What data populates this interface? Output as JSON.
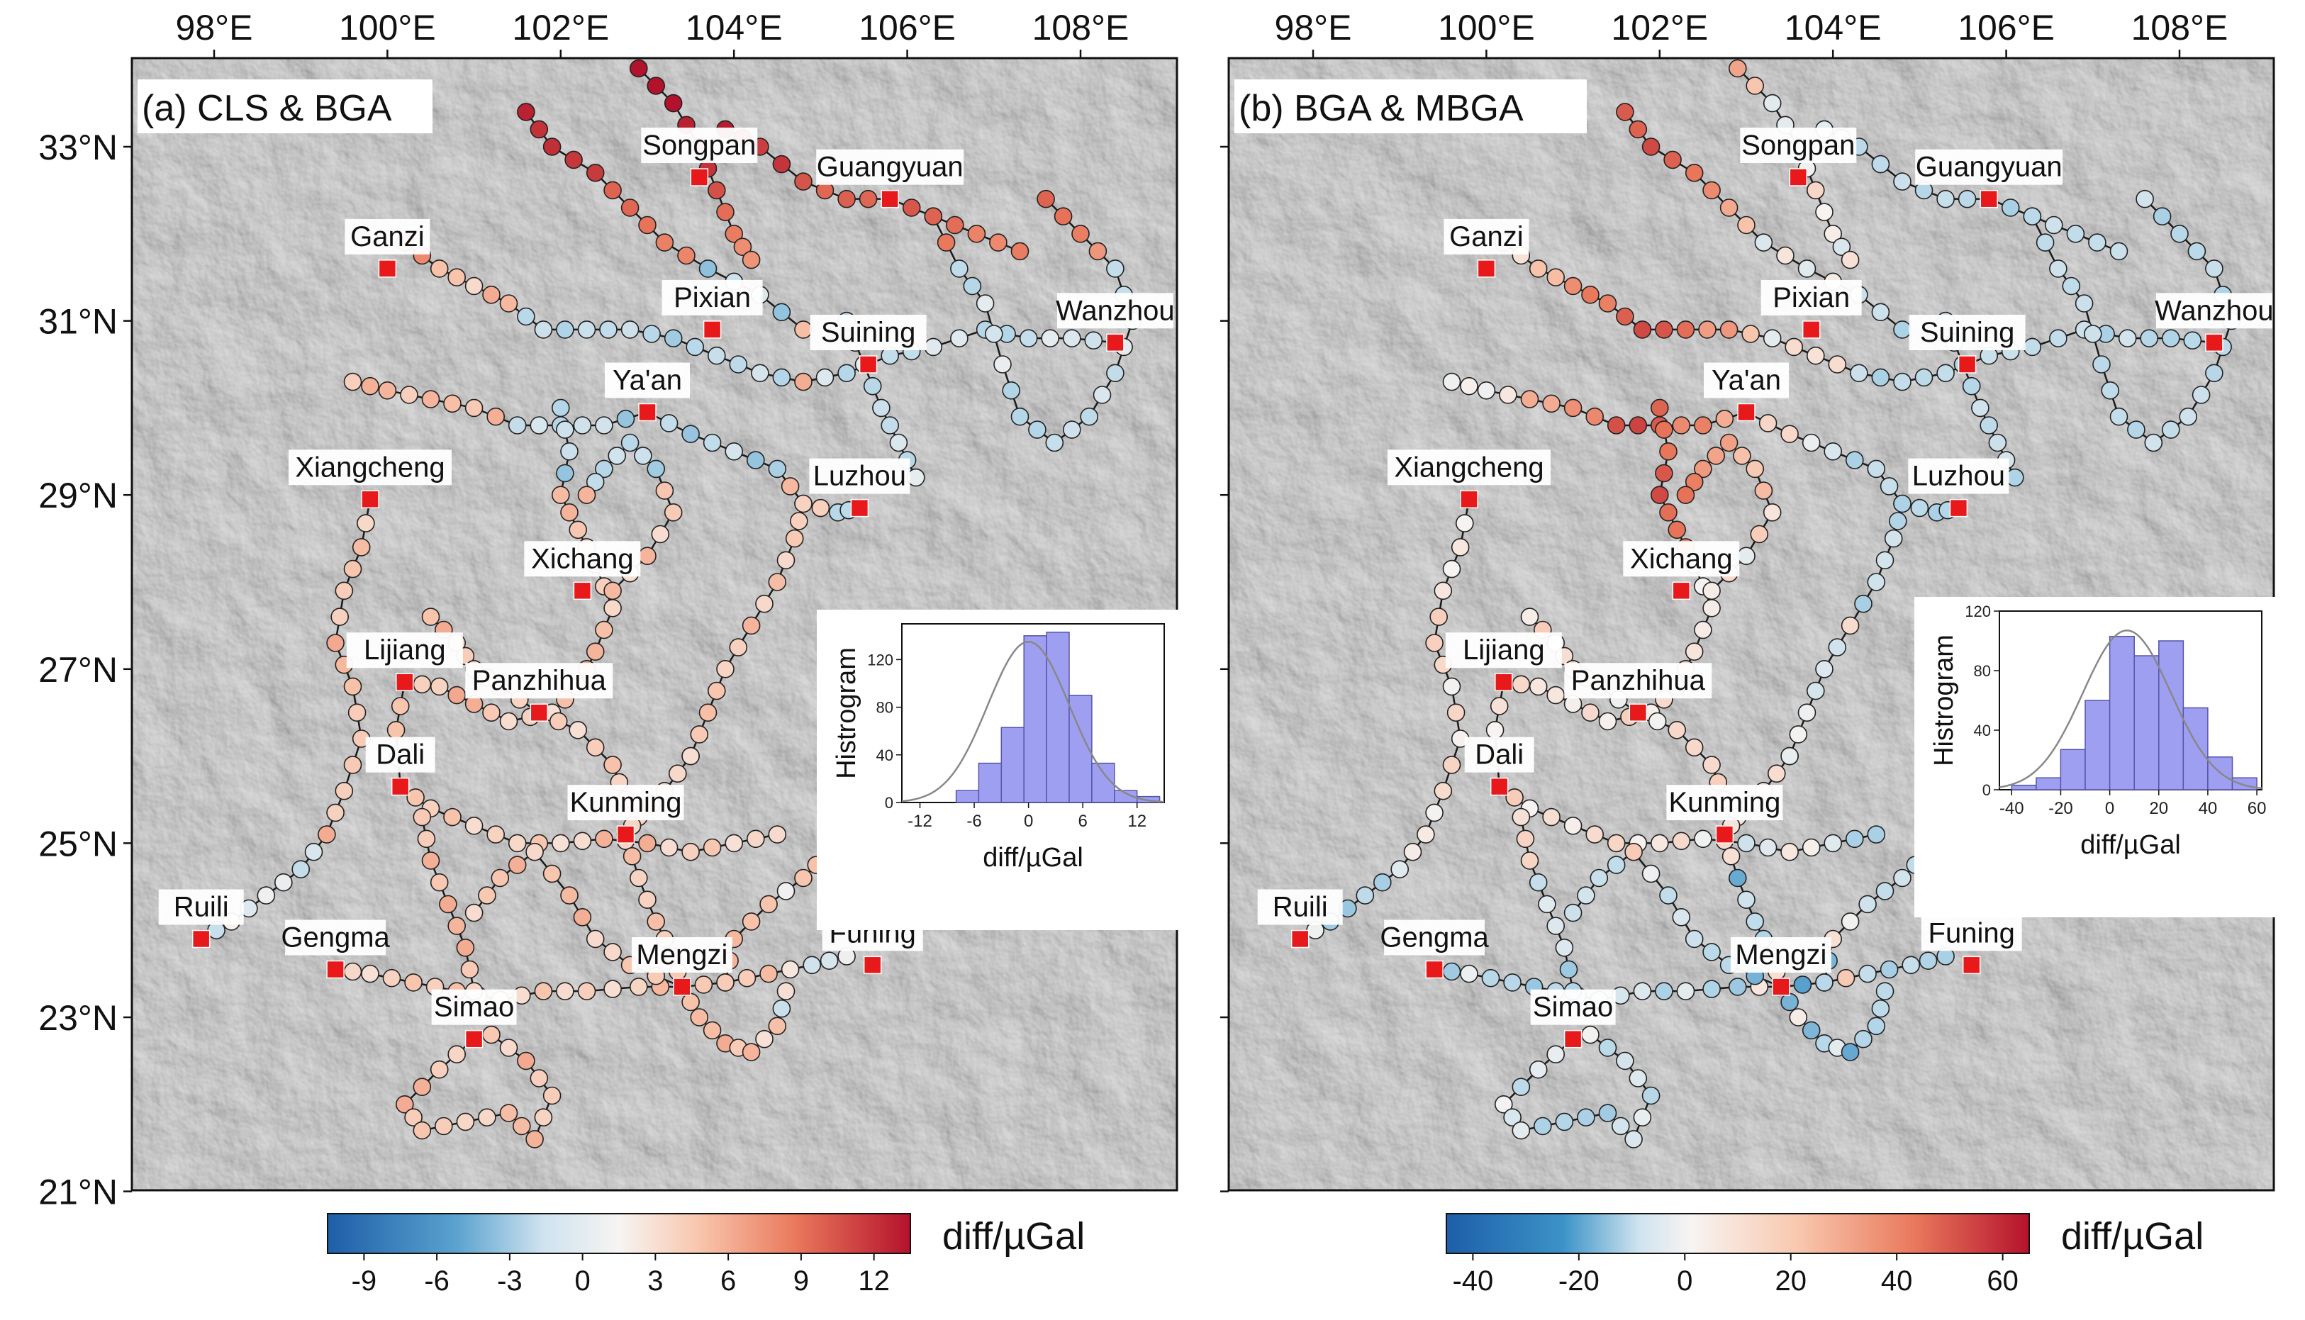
{
  "colors": {
    "node_edge": "#111111",
    "station": "#e8191b",
    "hist_fill": "#9f9ff2",
    "hist_edge": "#5555aa",
    "curve": "#888888",
    "terrain": "#b8b8b8"
  },
  "longitudes": [
    "98°E",
    "100°E",
    "102°E",
    "104°E",
    "106°E",
    "108°E"
  ],
  "latitudes": [
    "33°N",
    "31°N",
    "29°N",
    "27°N",
    "25°N",
    "23°N",
    "21°N"
  ],
  "stations": [
    {
      "name": "Songpan",
      "lon": 103.6,
      "lat": 32.65
    },
    {
      "name": "Guangyuan",
      "lon": 105.8,
      "lat": 32.4
    },
    {
      "name": "Ganzi",
      "lon": 100.0,
      "lat": 31.6
    },
    {
      "name": "Pixian",
      "lon": 103.75,
      "lat": 30.9
    },
    {
      "name": "Wanzhou",
      "lon": 108.4,
      "lat": 30.75
    },
    {
      "name": "Suining",
      "lon": 105.55,
      "lat": 30.5
    },
    {
      "name": "Ya'an",
      "lon": 103.0,
      "lat": 29.95
    },
    {
      "name": "Xiangcheng",
      "lon": 99.8,
      "lat": 28.95
    },
    {
      "name": "Luzhou",
      "lon": 105.45,
      "lat": 28.85
    },
    {
      "name": "Xichang",
      "lon": 102.25,
      "lat": 27.9
    },
    {
      "name": "Lijiang",
      "lon": 100.2,
      "lat": 26.85
    },
    {
      "name": "Panzhihua",
      "lon": 101.75,
      "lat": 26.5
    },
    {
      "name": "Dali",
      "lon": 100.15,
      "lat": 25.65
    },
    {
      "name": "Kunming",
      "lon": 102.75,
      "lat": 25.1
    },
    {
      "name": "Ruili",
      "lon": 97.85,
      "lat": 23.9
    },
    {
      "name": "Gengma",
      "lon": 99.4,
      "lat": 23.55
    },
    {
      "name": "Funing",
      "lon": 105.6,
      "lat": 23.6
    },
    {
      "name": "Mengzi",
      "lon": 103.4,
      "lat": 23.35
    },
    {
      "name": "Simao",
      "lon": 101.0,
      "lat": 22.75
    }
  ],
  "panels": [
    {
      "id": "a",
      "label": "(a) CLS & BGA",
      "colorbar": {
        "title": "diff/µGal",
        "ticks": [
          "-9",
          "-6",
          "-3",
          "0",
          "3",
          "6",
          "9",
          "12"
        ],
        "min": -10.5,
        "max": 13.5
      },
      "chart_data": {
        "type": "bar",
        "title": "",
        "xlabel": "diff/µGal",
        "ylabel": "Histrogram",
        "xticks": [
          "-12",
          "-6",
          "0",
          "6",
          "12"
        ],
        "yticks": [
          "0",
          "40",
          "80",
          "120"
        ],
        "xlim": [
          -14,
          15
        ],
        "ylim": [
          0,
          150
        ],
        "bin_edges": [
          -8,
          -5.5,
          -3,
          -0.5,
          2,
          4.5,
          7,
          9.5,
          12,
          14.5
        ],
        "values": [
          10,
          33,
          63,
          140,
          143,
          90,
          33,
          10,
          5
        ],
        "curve": {
          "mean": 0,
          "sigma": 4.5,
          "peak": 135
        }
      }
    },
    {
      "id": "b",
      "label": "(b) BGA & MBGA",
      "colorbar": {
        "title": "diff/µGal",
        "ticks": [
          "-40",
          "-20",
          "0",
          "20",
          "40",
          "60"
        ],
        "min": -45,
        "max": 65
      },
      "chart_data": {
        "type": "bar",
        "title": "",
        "xlabel": "diff/µGal",
        "ylabel": "Histrogram",
        "xticks": [
          "-40",
          "-20",
          "0",
          "20",
          "40",
          "60"
        ],
        "yticks": [
          "0",
          "40",
          "80",
          "120"
        ],
        "xlim": [
          -45,
          62
        ],
        "ylim": [
          0,
          120
        ],
        "bin_edges": [
          -40,
          -30,
          -20,
          -10,
          0,
          10,
          20,
          30,
          40,
          50,
          60
        ],
        "values": [
          3,
          8,
          27,
          60,
          103,
          90,
          100,
          55,
          22,
          8
        ],
        "curve": {
          "mean": 7,
          "sigma": 18,
          "peak": 107
        }
      }
    }
  ]
}
